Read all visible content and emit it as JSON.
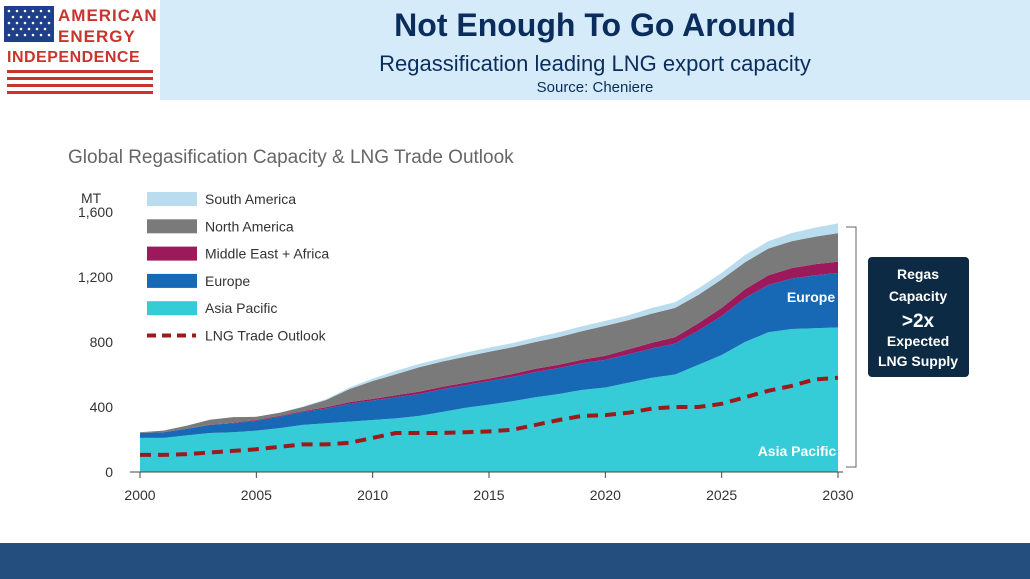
{
  "header": {
    "title": "Not Enough To Go Around",
    "subtitle": "Regassification leading LNG export capacity",
    "source": "Source: Cheniere"
  },
  "logo": {
    "line1": "AMERICAN",
    "line2": "ENERGY",
    "line3": "INDEPENDENCE"
  },
  "colors": {
    "south_america": "#b9dcef",
    "north_america": "#7a7a7a",
    "middle_east_africa": "#9c1a5c",
    "europe": "#1768b5",
    "asia_pacific": "#35ccd8",
    "lng_trade": "#9c1a1a",
    "callout_bg": "#0c2a44",
    "header_bg": "#d6ebfa",
    "brand_red": "#c9342e",
    "brand_navy": "#0b2d5b"
  },
  "chart_data": {
    "type": "area",
    "title": "Global Regasification Capacity & LNG Trade Outlook",
    "ylabel": "MT",
    "xlabel": "",
    "xlim": [
      2000,
      2030
    ],
    "ylim": [
      0,
      1600
    ],
    "x_ticks": [
      2000,
      2005,
      2010,
      2015,
      2020,
      2025,
      2030
    ],
    "y_ticks": [
      0,
      400,
      800,
      1200,
      1600
    ],
    "y_tick_labels": [
      "0",
      "400",
      "800",
      "1,200",
      "1,600"
    ],
    "stacked": true,
    "x": [
      2000,
      2001,
      2002,
      2003,
      2004,
      2005,
      2006,
      2007,
      2008,
      2009,
      2010,
      2011,
      2012,
      2013,
      2014,
      2015,
      2016,
      2017,
      2018,
      2019,
      2020,
      2021,
      2022,
      2023,
      2024,
      2025,
      2026,
      2027,
      2028,
      2029,
      2030
    ],
    "series": [
      {
        "name": "Asia Pacific",
        "values": [
          210,
          210,
          225,
          240,
          245,
          255,
          270,
          290,
          300,
          310,
          320,
          330,
          345,
          370,
          395,
          415,
          435,
          460,
          480,
          505,
          520,
          550,
          580,
          600,
          660,
          720,
          800,
          860,
          880,
          885,
          890
        ]
      },
      {
        "name": "Europe",
        "values": [
          30,
          35,
          40,
          50,
          55,
          60,
          70,
          80,
          90,
          110,
          120,
          130,
          135,
          140,
          140,
          145,
          150,
          155,
          160,
          165,
          170,
          175,
          180,
          190,
          210,
          240,
          270,
          290,
          310,
          325,
          335
        ]
      },
      {
        "name": "Middle East + Africa",
        "values": [
          0,
          0,
          0,
          2,
          3,
          5,
          5,
          5,
          8,
          10,
          10,
          12,
          15,
          15,
          15,
          15,
          18,
          20,
          20,
          22,
          25,
          30,
          35,
          40,
          45,
          50,
          55,
          60,
          65,
          68,
          70
        ]
      },
      {
        "name": "North America",
        "values": [
          5,
          10,
          20,
          30,
          35,
          20,
          20,
          25,
          45,
          80,
          110,
          130,
          150,
          155,
          160,
          165,
          165,
          165,
          170,
          175,
          185,
          180,
          180,
          180,
          175,
          175,
          165,
          165,
          165,
          170,
          175
        ]
      },
      {
        "name": "South America",
        "values": [
          0,
          0,
          0,
          0,
          0,
          0,
          0,
          3,
          5,
          10,
          15,
          20,
          20,
          20,
          25,
          25,
          25,
          28,
          30,
          30,
          30,
          30,
          35,
          35,
          40,
          40,
          45,
          45,
          50,
          55,
          60
        ]
      }
    ],
    "line_series": {
      "name": "LNG Trade Outlook",
      "style": "dashed",
      "values": [
        105,
        105,
        110,
        120,
        130,
        140,
        155,
        170,
        170,
        180,
        210,
        240,
        240,
        240,
        245,
        250,
        260,
        290,
        320,
        345,
        350,
        365,
        390,
        400,
        400,
        420,
        460,
        500,
        530,
        570,
        580
      ]
    },
    "legend": {
      "position": "top-left",
      "entries": [
        "South America",
        "North America",
        "Middle East + Africa",
        "Europe",
        "Asia Pacific",
        "LNG Trade Outlook"
      ]
    },
    "annotations": {
      "europe_label": "Europe",
      "asia_label": "Asia Pacific",
      "callout": [
        "Regas",
        "Capacity",
        ">2x",
        "Expected",
        "LNG Supply"
      ]
    }
  }
}
